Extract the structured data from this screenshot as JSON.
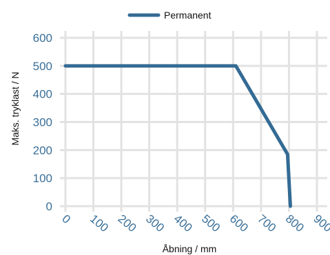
{
  "chart_data": {
    "type": "line",
    "title": "",
    "xlabel": "Åbning / mm",
    "ylabel": "Maks. tryklast / N",
    "xlim": [
      0,
      900
    ],
    "ylim": [
      0,
      600
    ],
    "x_ticks": [
      "0",
      "100",
      "200",
      "300",
      "400",
      "500",
      "600",
      "700",
      "800",
      "900"
    ],
    "y_ticks": [
      "0",
      "100",
      "200",
      "300",
      "400",
      "500",
      "600"
    ],
    "grid": true,
    "legend_position": "top-center",
    "series": [
      {
        "name": "Permanent",
        "color": "#336b94",
        "points": [
          {
            "x": 0,
            "y": 500
          },
          {
            "x": 610,
            "y": 500
          },
          {
            "x": 795,
            "y": 185
          },
          {
            "x": 805,
            "y": 0
          }
        ]
      }
    ]
  }
}
